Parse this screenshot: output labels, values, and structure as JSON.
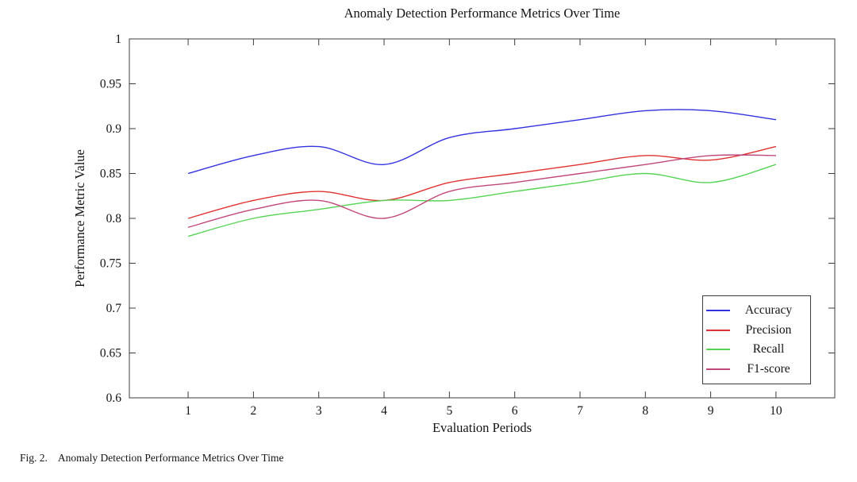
{
  "figure": {
    "caption_label": "Fig. 2.",
    "caption_text": "Anomaly Detection Performance Metrics Over Time"
  },
  "chart_data": {
    "type": "line",
    "title": "Anomaly Detection Performance Metrics Over Time",
    "xlabel": "Evaluation Periods",
    "ylabel": "Performance Metric Value",
    "x": [
      1,
      2,
      3,
      4,
      5,
      6,
      7,
      8,
      9,
      10
    ],
    "xticks": [
      1,
      2,
      3,
      4,
      5,
      6,
      7,
      8,
      9,
      10
    ],
    "yticks": [
      0.6,
      0.65,
      0.7,
      0.75,
      0.8,
      0.85,
      0.9,
      0.95,
      1
    ],
    "xlim": [
      0.1,
      10.9
    ],
    "ylim": [
      0.6,
      1.0
    ],
    "grid": false,
    "smooth": true,
    "legend_position": "inside lower right",
    "axis_color": "#3c3c3c",
    "text_color": "#141414",
    "series": [
      {
        "name": "Accuracy",
        "color": "#3232e0",
        "values": [
          0.85,
          0.87,
          0.88,
          0.86,
          0.89,
          0.9,
          0.91,
          0.92,
          0.92,
          0.91
        ]
      },
      {
        "name": "Precision",
        "color": "#e03232",
        "values": [
          0.8,
          0.82,
          0.83,
          0.82,
          0.84,
          0.85,
          0.86,
          0.87,
          0.865,
          0.88
        ]
      },
      {
        "name": "Recall",
        "color": "#55d455",
        "values": [
          0.78,
          0.8,
          0.81,
          0.82,
          0.82,
          0.83,
          0.84,
          0.85,
          0.84,
          0.86
        ]
      },
      {
        "name": "F1-score",
        "color": "#c04878",
        "values": [
          0.79,
          0.81,
          0.82,
          0.8,
          0.83,
          0.84,
          0.85,
          0.86,
          0.87,
          0.87
        ]
      }
    ]
  }
}
